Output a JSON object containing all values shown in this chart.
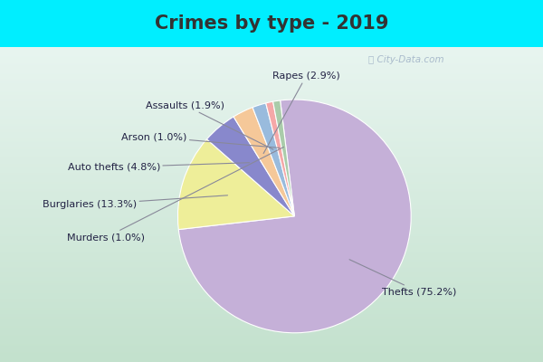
{
  "title": "Crimes by type - 2019",
  "labels": [
    "Thefts",
    "Burglaries",
    "Auto thefts",
    "Rapes",
    "Assaults",
    "Arson",
    "Murders"
  ],
  "values": [
    75.2,
    13.3,
    4.8,
    2.9,
    1.9,
    1.0,
    1.0
  ],
  "colors": [
    "#c5b0d8",
    "#eeee99",
    "#8888cc",
    "#f5c899",
    "#99bbdd",
    "#f5a8a8",
    "#aaccaa"
  ],
  "bg_color": "#00eeff",
  "chart_bg_top": "#e8f5f0",
  "chart_bg_bottom": "#d0ead8",
  "title_color": "#333333",
  "title_fontsize": 15,
  "label_fontsize": 8,
  "label_color": "#222244",
  "watermark_color": "#aabbcc",
  "startangle": 97,
  "label_data": [
    {
      "name": "Thefts (75.2%)",
      "xi": 0.75,
      "yi": -0.65,
      "ha": "left",
      "va": "center",
      "idx": 0
    },
    {
      "name": "Burglaries (13.3%)",
      "xi": -1.35,
      "yi": 0.1,
      "ha": "right",
      "va": "center",
      "idx": 1
    },
    {
      "name": "Auto thefts (4.8%)",
      "xi": -1.15,
      "yi": 0.42,
      "ha": "right",
      "va": "center",
      "idx": 2
    },
    {
      "name": "Rapes (2.9%)",
      "xi": 0.1,
      "yi": 1.2,
      "ha": "center",
      "va": "center",
      "idx": 3
    },
    {
      "name": "Assaults (1.9%)",
      "xi": -0.6,
      "yi": 0.95,
      "ha": "right",
      "va": "center",
      "idx": 4
    },
    {
      "name": "Arson (1.0%)",
      "xi": -0.92,
      "yi": 0.68,
      "ha": "right",
      "va": "center",
      "idx": 5
    },
    {
      "name": "Murders (1.0%)",
      "xi": -1.28,
      "yi": -0.18,
      "ha": "right",
      "va": "center",
      "idx": 6
    }
  ]
}
